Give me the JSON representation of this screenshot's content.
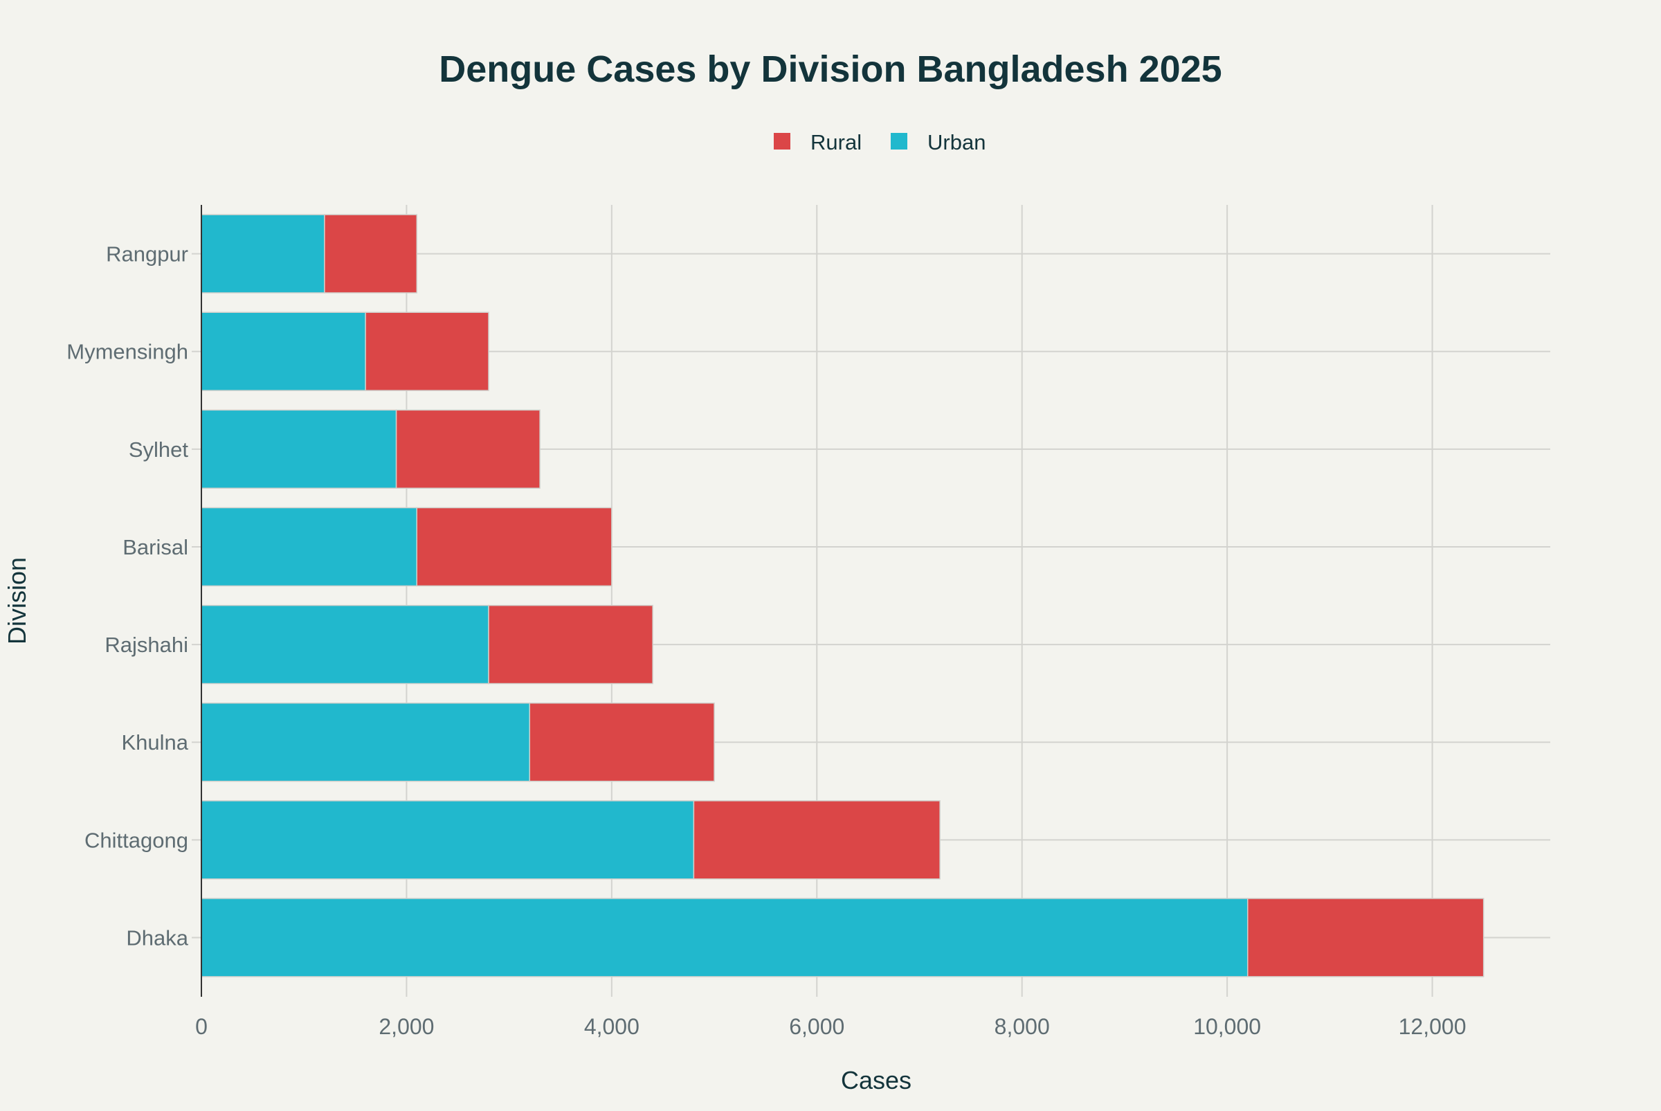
{
  "chart_data": {
    "type": "bar",
    "orientation": "horizontal",
    "stacked": true,
    "title": "Dengue Cases by Division Bangladesh 2025",
    "xlabel": "Cases",
    "ylabel": "Division",
    "categories": [
      "Dhaka",
      "Chittagong",
      "Khulna",
      "Rajshahi",
      "Barisal",
      "Sylhet",
      "Mymensingh",
      "Rangpur"
    ],
    "series": [
      {
        "name": "Urban",
        "color": "#21b8cd",
        "values": [
          10200,
          4800,
          3200,
          2800,
          2100,
          1900,
          1600,
          1200
        ]
      },
      {
        "name": "Rural",
        "color": "#db4647",
        "values": [
          2300,
          2400,
          1800,
          1600,
          1900,
          1400,
          1200,
          900
        ]
      }
    ],
    "legend_order": [
      "Rural",
      "Urban"
    ],
    "legend_placement": "top-center",
    "xlim": [
      0,
      13150
    ],
    "xticks": [
      0,
      2000,
      4000,
      6000,
      8000,
      10000,
      12000
    ],
    "xtick_labels": [
      "0",
      "2,000",
      "4,000",
      "6,000",
      "8,000",
      "10,000",
      "12,000"
    ],
    "grid": true,
    "colors": {
      "background": "#f3f3ee",
      "title": "#13343b",
      "tick_text": "#5e6c72",
      "grid": "#d3d3cf"
    }
  }
}
